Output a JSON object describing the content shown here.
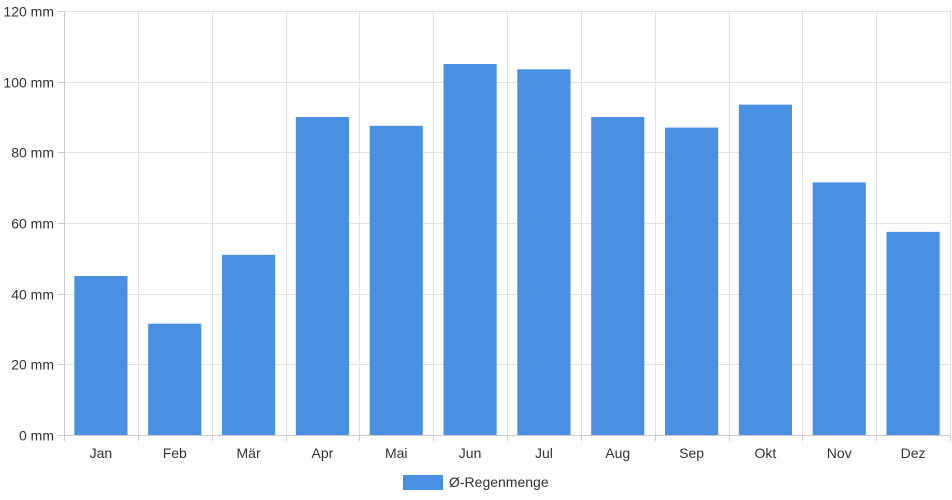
{
  "chart_data": {
    "type": "bar",
    "categories": [
      "Jan",
      "Feb",
      "Mär",
      "Apr",
      "Mai",
      "Jun",
      "Jul",
      "Aug",
      "Sep",
      "Okt",
      "Nov",
      "Dez"
    ],
    "series": [
      {
        "name": "Ø-Regenmenge",
        "values": [
          45,
          31.5,
          51,
          90,
          87.5,
          105,
          103.5,
          90,
          87,
          93.5,
          71.5,
          57.5
        ],
        "color": "#4a90e2"
      }
    ],
    "y_unit": "mm",
    "ylim": [
      0,
      120
    ],
    "yticks": [
      0,
      20,
      40,
      60,
      80,
      100,
      120
    ],
    "ytick_labels": [
      "0 mm",
      "20 mm",
      "40 mm",
      "60 mm",
      "80 mm",
      "100 mm",
      "120 mm"
    ],
    "grid": true,
    "legend_position": "bottom-center"
  }
}
